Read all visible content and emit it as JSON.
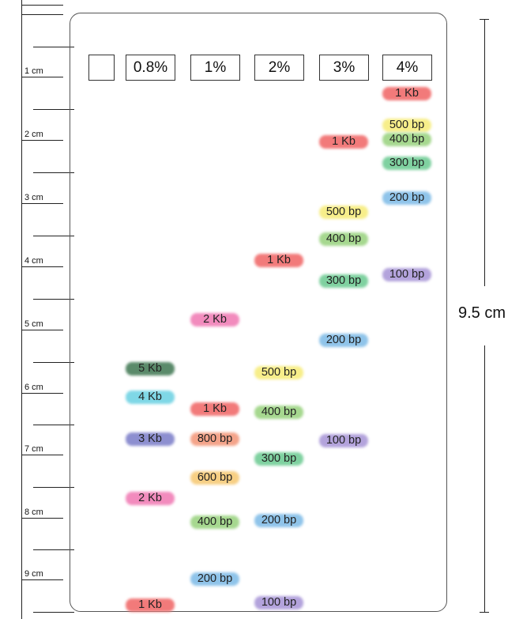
{
  "ruler": {
    "labels": [
      "1 cm",
      "2 cm",
      "3 cm",
      "4 cm",
      "5 cm",
      "6 cm",
      "7 cm",
      "8 cm",
      "9 cm"
    ]
  },
  "lanes": [
    {
      "label": ""
    },
    {
      "label": "0.8%"
    },
    {
      "label": "1%"
    },
    {
      "label": "2%"
    },
    {
      "label": "3%"
    },
    {
      "label": "4%"
    }
  ],
  "bands": [
    {
      "lane": 1,
      "label": "5 Kb",
      "color": "#5a8a6a"
    },
    {
      "lane": 1,
      "label": "4 Kb",
      "color": "#7fd7e6"
    },
    {
      "lane": 1,
      "label": "3 Kb",
      "color": "#8d8fd0"
    },
    {
      "lane": 1,
      "label": "2 Kb",
      "color": "#f28bbd"
    },
    {
      "lane": 1,
      "label": "1 Kb",
      "color": "#f27a7a"
    },
    {
      "lane": 2,
      "label": "2 Kb",
      "color": "#f28bbd"
    },
    {
      "lane": 2,
      "label": "1 Kb",
      "color": "#f27a7a"
    },
    {
      "lane": 2,
      "label": "800 bp",
      "color": "#f4a48a"
    },
    {
      "lane": 2,
      "label": "600 bp",
      "color": "#f7cf84"
    },
    {
      "lane": 2,
      "label": "400 bp",
      "color": "#a6d88f"
    },
    {
      "lane": 2,
      "label": "200 bp",
      "color": "#8fc4ea"
    },
    {
      "lane": 3,
      "label": "1 Kb",
      "color": "#f27a7a"
    },
    {
      "lane": 3,
      "label": "500 bp",
      "color": "#f7ee8a"
    },
    {
      "lane": 3,
      "label": "400 bp",
      "color": "#a6d88f"
    },
    {
      "lane": 3,
      "label": "300 bp",
      "color": "#7fd1a0"
    },
    {
      "lane": 3,
      "label": "200 bp",
      "color": "#8fc4ea"
    },
    {
      "lane": 3,
      "label": "100 bp",
      "color": "#b3a3dc"
    },
    {
      "lane": 4,
      "label": "1 Kb",
      "color": "#f27a7a"
    },
    {
      "lane": 4,
      "label": "500 bp",
      "color": "#f7ee8a"
    },
    {
      "lane": 4,
      "label": "400 bp",
      "color": "#a6d88f"
    },
    {
      "lane": 4,
      "label": "300 bp",
      "color": "#7fd1a0"
    },
    {
      "lane": 4,
      "label": "200 bp",
      "color": "#8fc4ea"
    },
    {
      "lane": 4,
      "label": "100 bp",
      "color": "#b3a3dc"
    },
    {
      "lane": 5,
      "label": "1 Kb",
      "color": "#f27a7a"
    },
    {
      "lane": 5,
      "label": "500 bp",
      "color": "#f7ee8a"
    },
    {
      "lane": 5,
      "label": "400 bp",
      "color": "#a6d88f"
    },
    {
      "lane": 5,
      "label": "300 bp",
      "color": "#7fd1a0"
    },
    {
      "lane": 5,
      "label": "200 bp",
      "color": "#8fc4ea"
    },
    {
      "lane": 5,
      "label": "100 bp",
      "color": "#b3a3dc"
    }
  ],
  "scale": {
    "label": "9.5 cm"
  }
}
